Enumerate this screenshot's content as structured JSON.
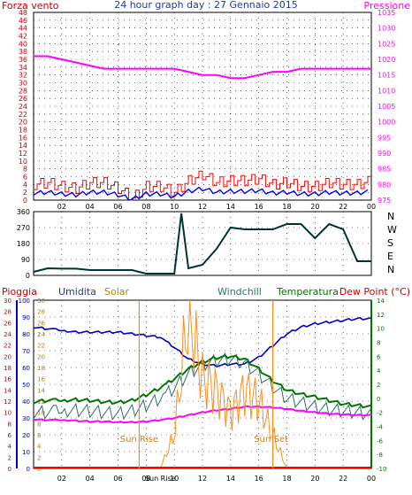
{
  "header": {
    "left_label": "Forza vento",
    "center_title": "24 hour graph day : 27 Gennaio 2015",
    "right_label": "Pressione"
  },
  "direction_labels": [
    "N",
    "W",
    "S",
    "E",
    "N"
  ],
  "bottom_labels": {
    "pioggia": "Pioggia",
    "umidita": "Umidita",
    "solar": "Solar",
    "windchill": "Windchill",
    "temperatura": "Temperatura",
    "dewpoint": "Dew Point (°C)"
  },
  "sun_labels": {
    "rise": "Sun Rise",
    "set": "Sun Set"
  },
  "colors": {
    "wind": "#ff0000",
    "gust": "#ff0000",
    "wind_avg": "#0000ff",
    "pressure": "#ff00ff",
    "direction": "#003333",
    "humidity": "#0000cc",
    "solar": "#ff8c1a",
    "windchill": "#2f6f6f",
    "temperature": "#007700",
    "dewpoint": "#ff00ff",
    "rain": "#ff0000",
    "grid": "#000000",
    "axis_text": "#000000"
  },
  "chart_data": [
    {
      "type": "line",
      "title": "24 hour graph day : 27 Gennaio 2015",
      "x_tick_labels": [
        "02",
        "04",
        "06",
        "08",
        "10",
        "12",
        "14",
        "16",
        "18",
        "20",
        "22",
        "00"
      ],
      "y_left_label": "Forza vento",
      "y_left_ticks": [
        0,
        2,
        4,
        6,
        8,
        10,
        12,
        14,
        16,
        18,
        20,
        22,
        24,
        26,
        28,
        30,
        32,
        34,
        36,
        38,
        40,
        42,
        44,
        46,
        48
      ],
      "y_left_lim": [
        0,
        48
      ],
      "y_right_label": "Pressione",
      "y_right_ticks": [
        975,
        980,
        985,
        990,
        995,
        1000,
        1005,
        1010,
        1015,
        1020,
        1025,
        1030,
        1035
      ],
      "y_right_lim": [
        975,
        1035
      ],
      "x_hours": [
        0,
        1,
        2,
        3,
        4,
        5,
        6,
        7,
        8,
        9,
        10,
        11,
        12,
        13,
        14,
        15,
        16,
        17,
        18,
        19,
        20,
        21,
        22,
        23,
        24
      ],
      "series": [
        {
          "name": "Forza vento",
          "axis": "left",
          "values": [
            4,
            4.5,
            3.5,
            3,
            4.5,
            4.5,
            3,
            0.5,
            3.5,
            3.5,
            2,
            5,
            6.5,
            4.5,
            5,
            5,
            5.5,
            4,
            4.5,
            3.5,
            3.5,
            4.5,
            4,
            4,
            5
          ]
        },
        {
          "name": "Pressione",
          "axis": "right",
          "values": [
            1021,
            1021,
            1020,
            1019,
            1018,
            1017,
            1017,
            1017,
            1017,
            1017,
            1017,
            1016,
            1015,
            1015,
            1014,
            1014,
            1015,
            1016,
            1016,
            1017,
            1017,
            1017,
            1017,
            1017,
            1017
          ]
        }
      ]
    },
    {
      "type": "line",
      "x_hours": [
        0,
        1,
        2,
        3,
        4,
        5,
        6,
        7,
        8,
        9,
        10,
        10.5,
        11,
        12,
        13,
        14,
        15,
        16,
        17,
        18,
        19,
        20,
        21,
        22,
        23,
        24
      ],
      "y_ticks": [
        0,
        90,
        180,
        270,
        360
      ],
      "y_lim": [
        0,
        360
      ],
      "y_right_labels": [
        "N",
        "W",
        "S",
        "E",
        "N"
      ],
      "series": [
        {
          "name": "direction",
          "values": [
            20,
            40,
            38,
            38,
            30,
            30,
            30,
            30,
            10,
            10,
            10,
            350,
            40,
            60,
            150,
            270,
            260,
            260,
            260,
            290,
            290,
            210,
            290,
            260,
            80,
            80
          ]
        }
      ]
    },
    {
      "type": "line",
      "x_tick_labels": [
        "02",
        "04",
        "06",
        "08",
        "Sun Rise",
        "10",
        "12",
        "14",
        "16",
        "18",
        "20",
        "22",
        "00"
      ],
      "y_left_ticks_rain": [
        0,
        2,
        4,
        6,
        8,
        10,
        12,
        14,
        16,
        18,
        20,
        22,
        24,
        26,
        28,
        30
      ],
      "y_left_ticks_humidity": [
        0,
        10,
        20,
        30,
        40,
        50,
        60,
        70,
        80,
        90,
        100
      ],
      "y_solar_ticks": [
        0,
        2,
        4,
        6,
        8,
        10,
        12,
        14,
        16,
        18,
        20,
        22,
        24,
        26,
        28,
        30
      ],
      "y_right_ticks": [
        -10,
        -8,
        -6,
        -4,
        -2,
        0,
        2,
        4,
        6,
        8,
        10,
        12,
        14
      ],
      "y_right_lim": [
        -10,
        14
      ],
      "x_hours": [
        0,
        1,
        2,
        3,
        4,
        5,
        6,
        7,
        8,
        9,
        10,
        11,
        12,
        13,
        14,
        15,
        16,
        17,
        18,
        19,
        20,
        21,
        22,
        23,
        24
      ],
      "series": [
        {
          "name": "Umidita",
          "values": [
            84,
            83,
            82,
            81,
            81,
            81,
            81,
            80,
            79,
            78,
            72,
            65,
            62,
            61,
            62,
            62,
            66,
            73,
            80,
            84,
            86,
            87,
            88,
            89,
            89
          ]
        },
        {
          "name": "Temperatura",
          "values": [
            -0.5,
            -0.3,
            -0.3,
            -0.2,
            -0.3,
            -0.5,
            -0.6,
            -0.3,
            0.5,
            1.5,
            2.8,
            4.2,
            5.2,
            5.8,
            6.0,
            5.6,
            4.2,
            2.5,
            1.2,
            0.6,
            0.2,
            -0.3,
            -0.8,
            -1.0,
            -1.2
          ]
        },
        {
          "name": "Windchill",
          "values": [
            -2,
            -2,
            -1.8,
            -1.7,
            -1.8,
            -2,
            -2.2,
            -1.8,
            -1,
            0,
            1.5,
            3.5,
            4.8,
            5.4,
            5.6,
            5.0,
            3.5,
            1.6,
            0,
            -0.6,
            -1.2,
            -1.6,
            -1.8,
            -2,
            -2.3
          ]
        },
        {
          "name": "Dew Point",
          "values": [
            -3,
            -3.1,
            -3.1,
            -3.2,
            -3.3,
            -3.3,
            -3.4,
            -3.4,
            -3.3,
            -3.1,
            -2.8,
            -2.4,
            -2.0,
            -1.7,
            -1.5,
            -1.2,
            -1.2,
            -1.3,
            -1.5,
            -1.8,
            -2.0,
            -2.2,
            -2.3,
            -2.4,
            -2.4
          ]
        },
        {
          "name": "Solar",
          "values": [
            null,
            null,
            null,
            null,
            null,
            null,
            null,
            null,
            null,
            0,
            6,
            28,
            16,
            14,
            10,
            14,
            12,
            6,
            0,
            null,
            null,
            null,
            null,
            null,
            null
          ]
        },
        {
          "name": "Pioggia",
          "values": [
            0,
            0,
            0,
            0,
            0,
            0,
            0,
            0,
            0,
            0,
            0,
            0,
            0,
            0,
            0,
            0,
            0,
            0,
            0,
            0,
            0,
            0,
            0,
            0,
            0
          ]
        }
      ],
      "sun_rise_hour": 7.5,
      "sun_set_hour": 17.0
    }
  ]
}
